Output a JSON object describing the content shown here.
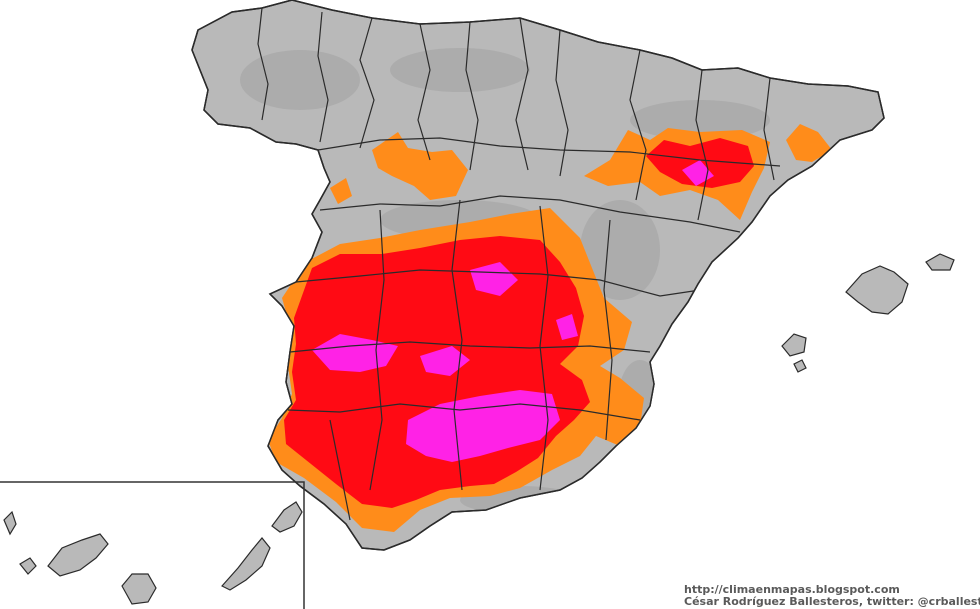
{
  "credits": {
    "line1": "http://climaenmapas.blogspot.com",
    "line2": "César Rodríguez Ballesteros, twitter: @crballesteros"
  },
  "colors": {
    "background": "#ffffff",
    "land": "#b9b9b9",
    "land_dark": "#a7a7a7",
    "border": "#2b2b2b",
    "orange": "#ff8c1a",
    "red": "#ff0a14",
    "magenta": "#ff22e6",
    "inset_frame": "#333333"
  },
  "map": {
    "region": "Iberian Peninsula (Spain), Balearic Islands, Canary Islands inset",
    "color_classes": [
      "orange",
      "red",
      "magenta"
    ]
  }
}
